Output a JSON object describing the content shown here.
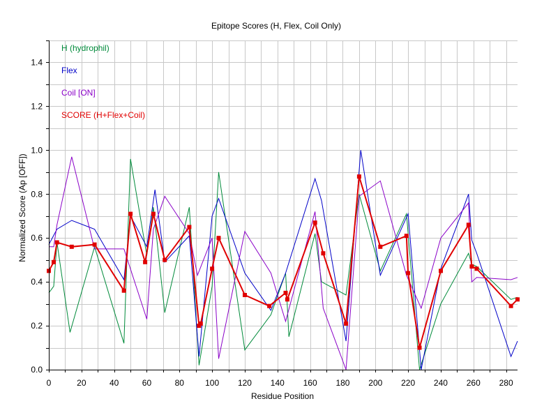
{
  "chart_data": {
    "type": "line",
    "title": "Epitope Scores (H, Flex, Coil Only)",
    "xlabel": "Residue Position",
    "ylabel": "Normalized Score (Ap [OFF])",
    "xlim": [
      0,
      287
    ],
    "ylim": [
      0,
      1.5
    ],
    "x_ticks": [
      0,
      20,
      40,
      60,
      80,
      100,
      120,
      140,
      160,
      180,
      200,
      220,
      240,
      260,
      280
    ],
    "y_ticks": [
      0.0,
      0.2,
      0.4,
      0.6,
      0.8,
      1.0,
      1.2,
      1.4
    ],
    "y_tick_labels": [
      "0.0",
      "0.2",
      "0.4",
      "0.6",
      "0.8",
      "1.0",
      "1.2",
      "1.4"
    ],
    "grid": true,
    "legend_position": "top-left",
    "series": [
      {
        "name": "H (hydrophil)",
        "color": "#008a3a",
        "x": [
          0,
          3,
          5,
          13,
          28,
          46,
          50,
          60,
          64,
          71,
          86,
          92,
          100,
          104,
          120,
          136,
          145,
          147,
          163,
          167,
          182,
          190,
          203,
          219,
          227,
          240,
          257,
          259,
          262,
          283,
          287
        ],
        "y": [
          0.35,
          0.38,
          0.58,
          0.17,
          0.56,
          0.12,
          0.96,
          0.52,
          0.74,
          0.26,
          0.74,
          0.02,
          0.38,
          0.9,
          0.09,
          0.25,
          0.44,
          0.15,
          0.62,
          0.4,
          0.34,
          0.8,
          0.45,
          0.71,
          0.0,
          0.3,
          0.53,
          0.48,
          0.47,
          0.32,
          0.33
        ]
      },
      {
        "name": "Flex",
        "color": "#0000c8",
        "x": [
          0,
          5,
          14,
          28,
          46,
          50,
          60,
          65,
          71,
          86,
          92,
          100,
          104,
          120,
          136,
          145,
          163,
          167,
          182,
          191,
          203,
          220,
          228,
          240,
          257,
          259,
          262,
          283,
          287
        ],
        "y": [
          0.57,
          0.64,
          0.68,
          0.64,
          0.41,
          0.7,
          0.56,
          0.82,
          0.49,
          0.61,
          0.06,
          0.7,
          0.78,
          0.44,
          0.27,
          0.44,
          0.87,
          0.77,
          0.13,
          1.0,
          0.43,
          0.71,
          0.0,
          0.46,
          0.8,
          0.59,
          0.53,
          0.06,
          0.13
        ]
      },
      {
        "name": "Coil [ON]",
        "color": "#8a00c8",
        "x": [
          0,
          3,
          5,
          14,
          28,
          46,
          60,
          64,
          71,
          86,
          91,
          100,
          104,
          120,
          136,
          145,
          163,
          168,
          182,
          190,
          203,
          219,
          228,
          240,
          257,
          259,
          262,
          283,
          287
        ],
        "y": [
          0.56,
          0.56,
          0.66,
          0.97,
          0.55,
          0.55,
          0.23,
          0.64,
          0.79,
          0.62,
          0.43,
          0.6,
          0.05,
          0.63,
          0.44,
          0.22,
          0.72,
          0.28,
          0.0,
          0.79,
          0.86,
          0.43,
          0.28,
          0.6,
          0.76,
          0.4,
          0.42,
          0.41,
          0.42
        ]
      },
      {
        "name": "SCORE (H+Flex+Coil)",
        "color": "#e00000",
        "markers": true,
        "x": [
          0,
          3,
          5,
          14,
          28,
          46,
          50,
          59,
          64,
          71,
          86,
          92,
          93,
          100,
          104,
          120,
          135,
          145,
          146,
          163,
          168,
          182,
          190,
          203,
          219,
          220,
          227,
          240,
          257,
          259,
          262,
          283,
          287
        ],
        "y": [
          0.45,
          0.49,
          0.58,
          0.56,
          0.57,
          0.36,
          0.71,
          0.49,
          0.71,
          0.5,
          0.65,
          0.2,
          0.21,
          0.46,
          0.6,
          0.34,
          0.29,
          0.35,
          0.32,
          0.67,
          0.53,
          0.21,
          0.88,
          0.56,
          0.61,
          0.44,
          0.1,
          0.45,
          0.66,
          0.47,
          0.46,
          0.29,
          0.32
        ]
      }
    ]
  }
}
